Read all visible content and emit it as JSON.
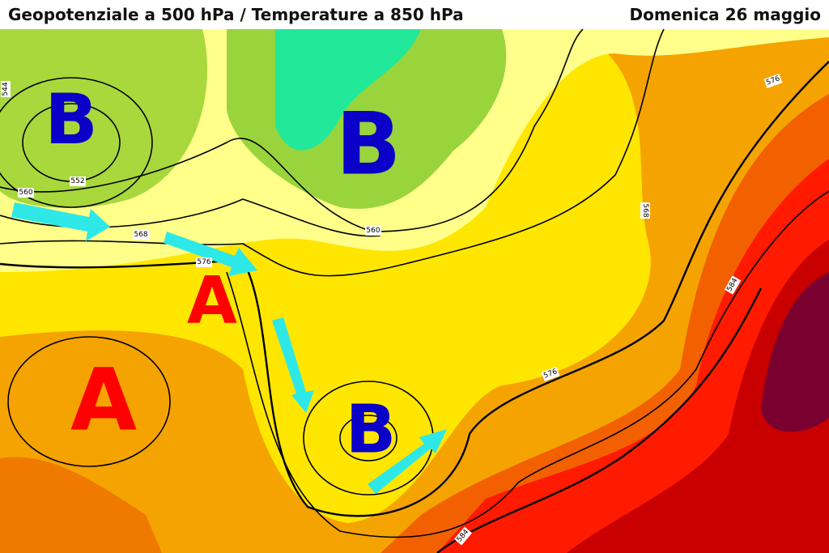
{
  "header": {
    "title": "Geopotenziale a 500 hPa / Temperature a 850 hPa",
    "date": "Domenica 26 maggio"
  },
  "pressure_centers": [
    "B",
    "B",
    "A",
    "A",
    "B"
  ],
  "contour_labels": [
    544,
    552,
    560,
    568,
    576,
    560,
    576,
    568,
    584,
    576,
    584
  ]
}
